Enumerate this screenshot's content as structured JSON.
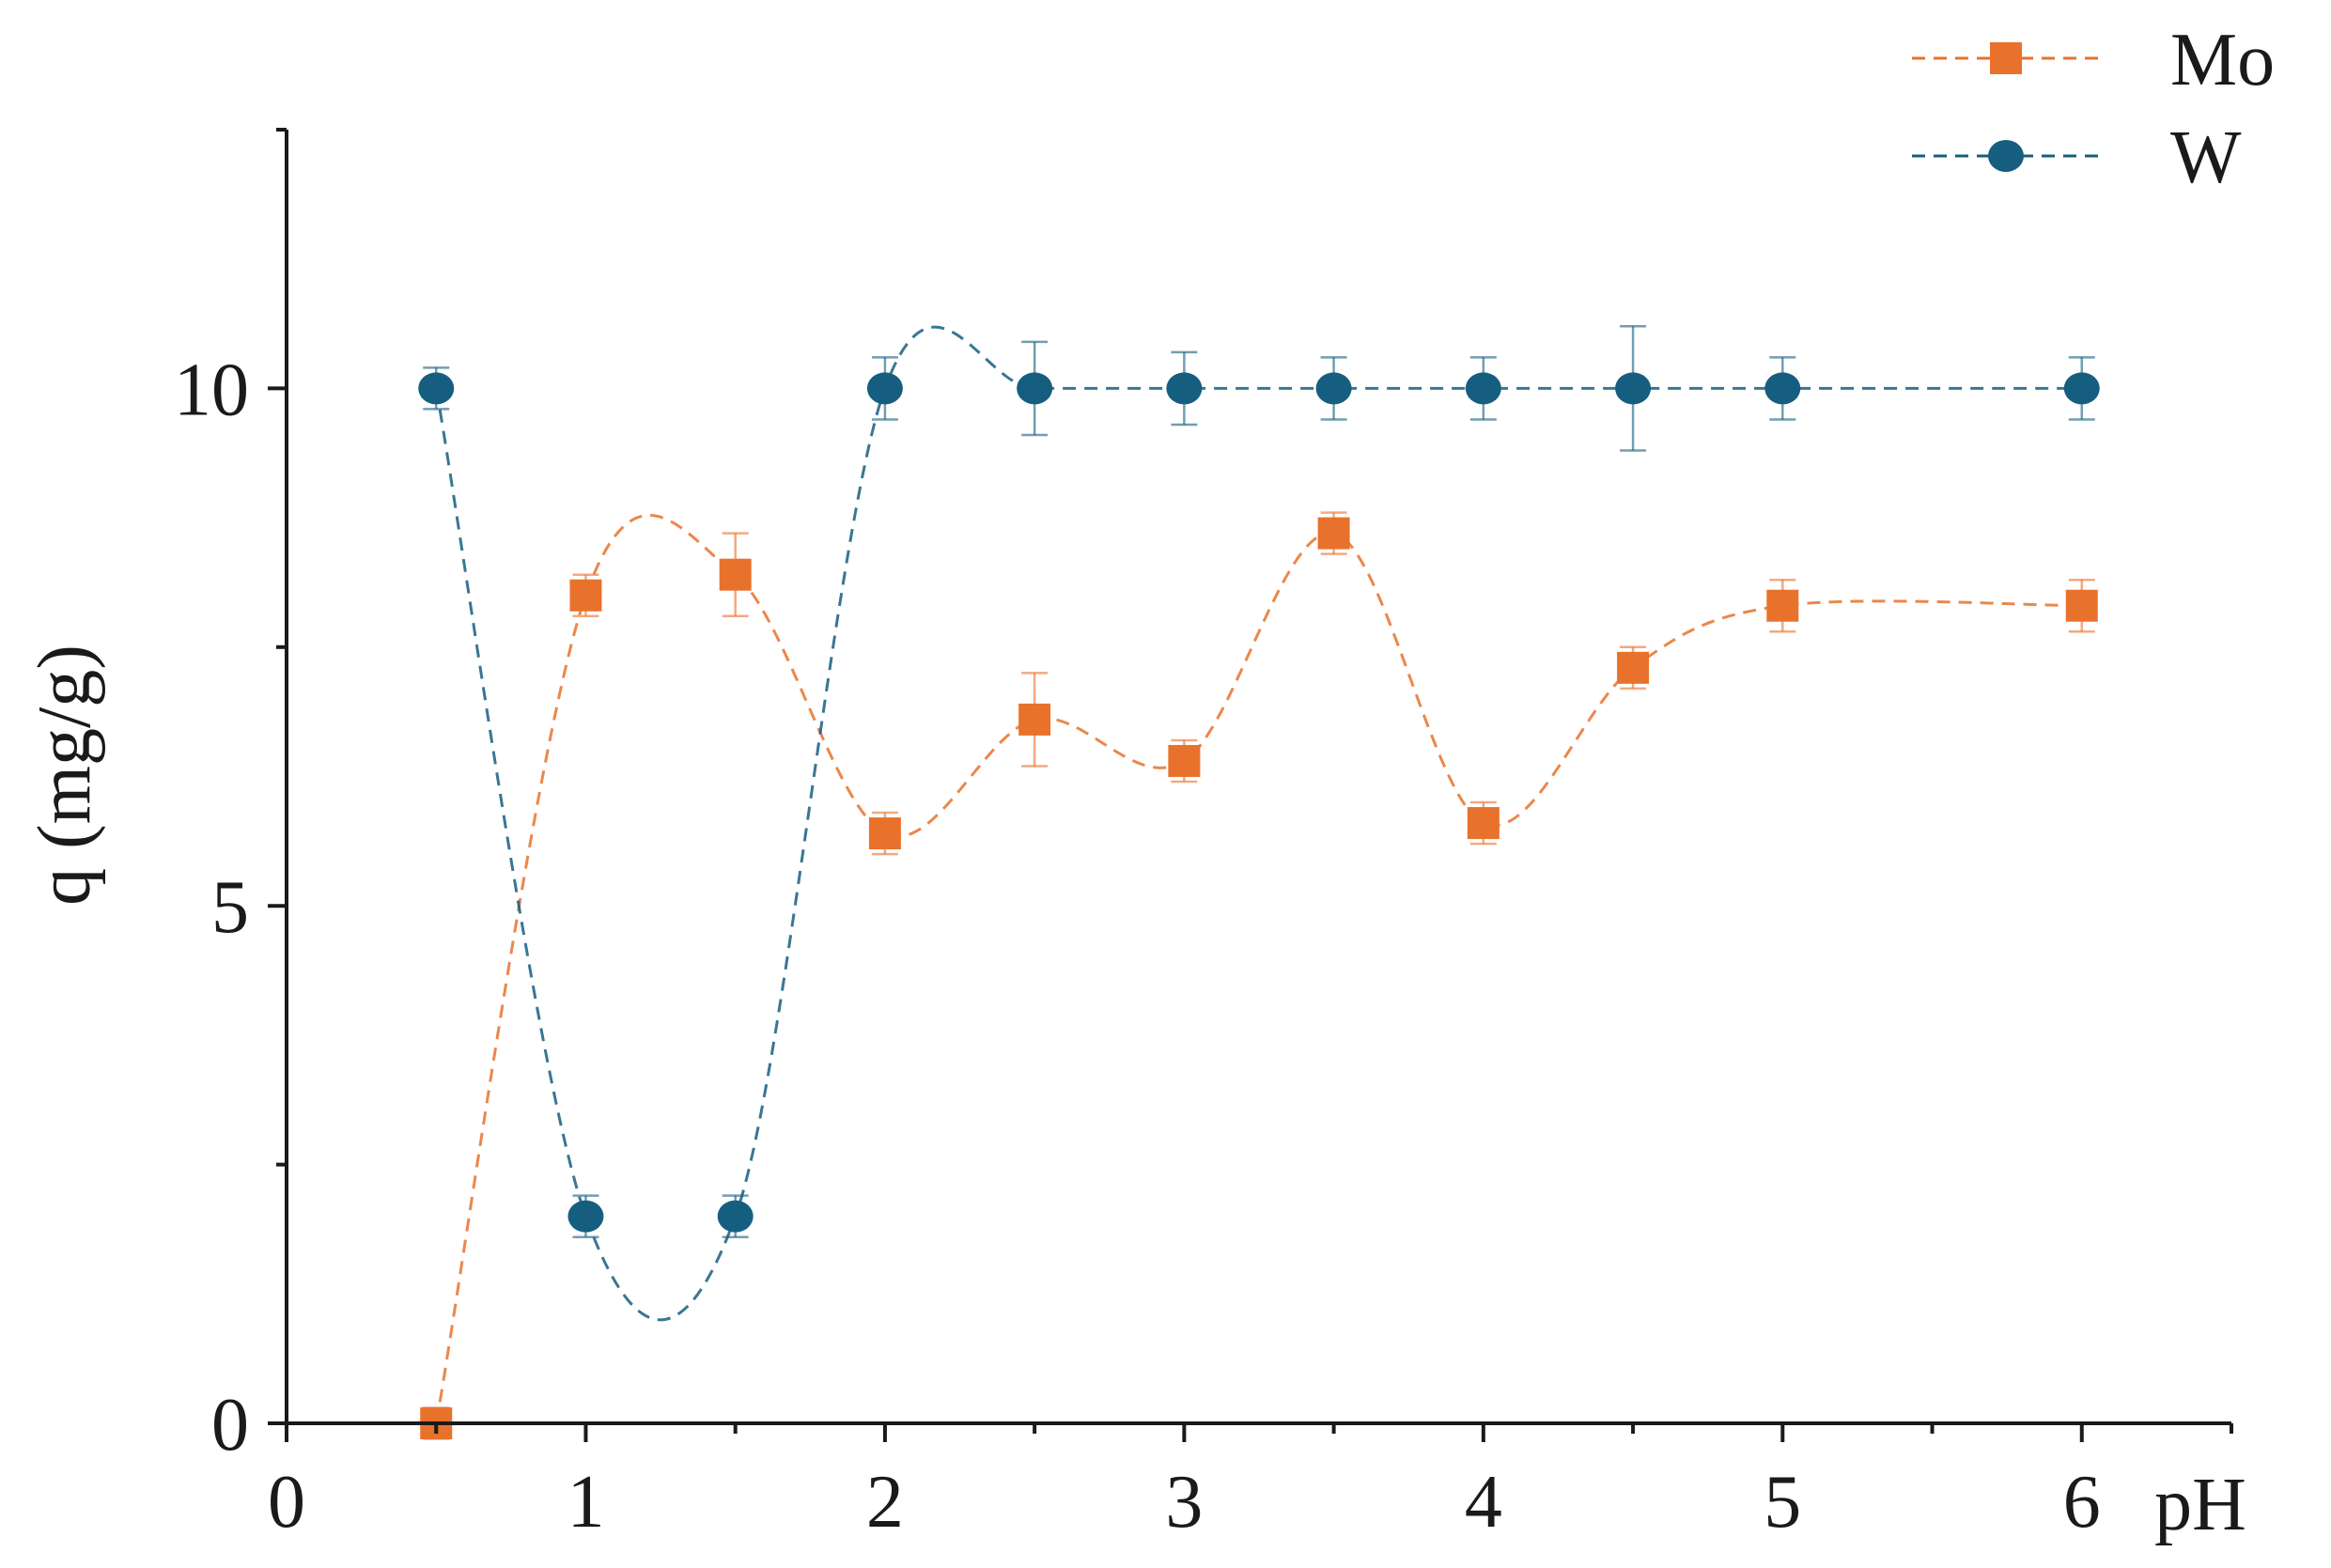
{
  "chart_data": {
    "type": "scatter",
    "xlabel": "pH",
    "ylabel": "q (mg/g)",
    "xlim": [
      0,
      6.5
    ],
    "ylim": [
      0,
      12.5
    ],
    "x_ticks": [
      0,
      1,
      2,
      3,
      4,
      5,
      6
    ],
    "y_ticks": [
      0,
      5,
      10
    ],
    "legend_position": "top-right",
    "grid": false,
    "x": [
      0.5,
      1,
      1.5,
      2,
      2.5,
      3,
      3.5,
      4,
      4.5,
      5,
      6
    ],
    "series": [
      {
        "name": "Mo",
        "color": "#E8722C",
        "marker": "square",
        "values": [
          0,
          8.0,
          8.2,
          5.7,
          6.8,
          6.4,
          8.6,
          5.8,
          7.3,
          7.9,
          7.9
        ],
        "errors": [
          0.15,
          0.2,
          0.4,
          0.2,
          0.45,
          0.2,
          0.2,
          0.2,
          0.2,
          0.25,
          0.25
        ]
      },
      {
        "name": "W",
        "color": "#165E80",
        "marker": "circle",
        "values": [
          10,
          2.0,
          2.0,
          10,
          10,
          10,
          10,
          10,
          10,
          10,
          10
        ],
        "errors": [
          0.2,
          0.2,
          0.2,
          0.3,
          0.45,
          0.35,
          0.3,
          0.3,
          0.6,
          0.3,
          0.3
        ]
      }
    ]
  }
}
